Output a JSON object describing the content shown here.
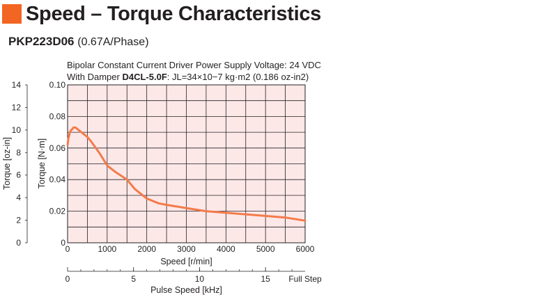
{
  "header": {
    "title": "Speed – Torque Characteristics",
    "model": "PKP223D06",
    "phase": "(0.67A/Phase)"
  },
  "conditions": {
    "line1": "Bipolar Constant Current Driver  Power Supply Voltage: 24 VDC",
    "line2_prefix": "With Damper ",
    "damper_model": "D4CL-5.0F",
    "line2_suffix": ": JL=34×10−7 kg·m2 (0.186 oz-in2)"
  },
  "colors": {
    "accent": "#f26522",
    "plot_bg": "#fde8e8",
    "curve": "#f37b4a"
  },
  "chart_data": {
    "type": "line",
    "xlabel": "Speed [r/min]",
    "ylabel": "Torque [N·m]",
    "ylabel2": "Torque [oz-in]",
    "x2label": "Pulse Speed [kHz]",
    "xlim": [
      0,
      6000
    ],
    "ylim": [
      0,
      0.1
    ],
    "y2lim": [
      0,
      14
    ],
    "x2lim": [
      0,
      18
    ],
    "x_ticks": [
      "0",
      "1000",
      "2000",
      "3000",
      "4000",
      "5000",
      "6000"
    ],
    "y_ticks": [
      "0",
      "0.02",
      "0.04",
      "0.06",
      "0.08",
      "0.10"
    ],
    "y2_ticks": [
      "0",
      "2",
      "4",
      "6",
      "8",
      "10",
      "12",
      "14"
    ],
    "x2_ticks": [
      "0",
      "5",
      "10",
      "15"
    ],
    "x2_end_label": "Full Step",
    "grid": true,
    "series": [
      {
        "x": [
          0,
          20,
          40,
          60,
          80,
          120,
          150,
          200,
          300,
          500,
          600,
          800,
          1000,
          1200,
          1500,
          1700,
          2000,
          2300,
          2500,
          3000,
          3500,
          4000,
          4500,
          5000,
          5500,
          6000
        ],
        "y": [
          0.062,
          0.066,
          0.068,
          0.07,
          0.071,
          0.072,
          0.073,
          0.073,
          0.071,
          0.067,
          0.064,
          0.057,
          0.049,
          0.045,
          0.04,
          0.034,
          0.028,
          0.025,
          0.024,
          0.022,
          0.02,
          0.019,
          0.018,
          0.017,
          0.016,
          0.014
        ]
      }
    ]
  }
}
